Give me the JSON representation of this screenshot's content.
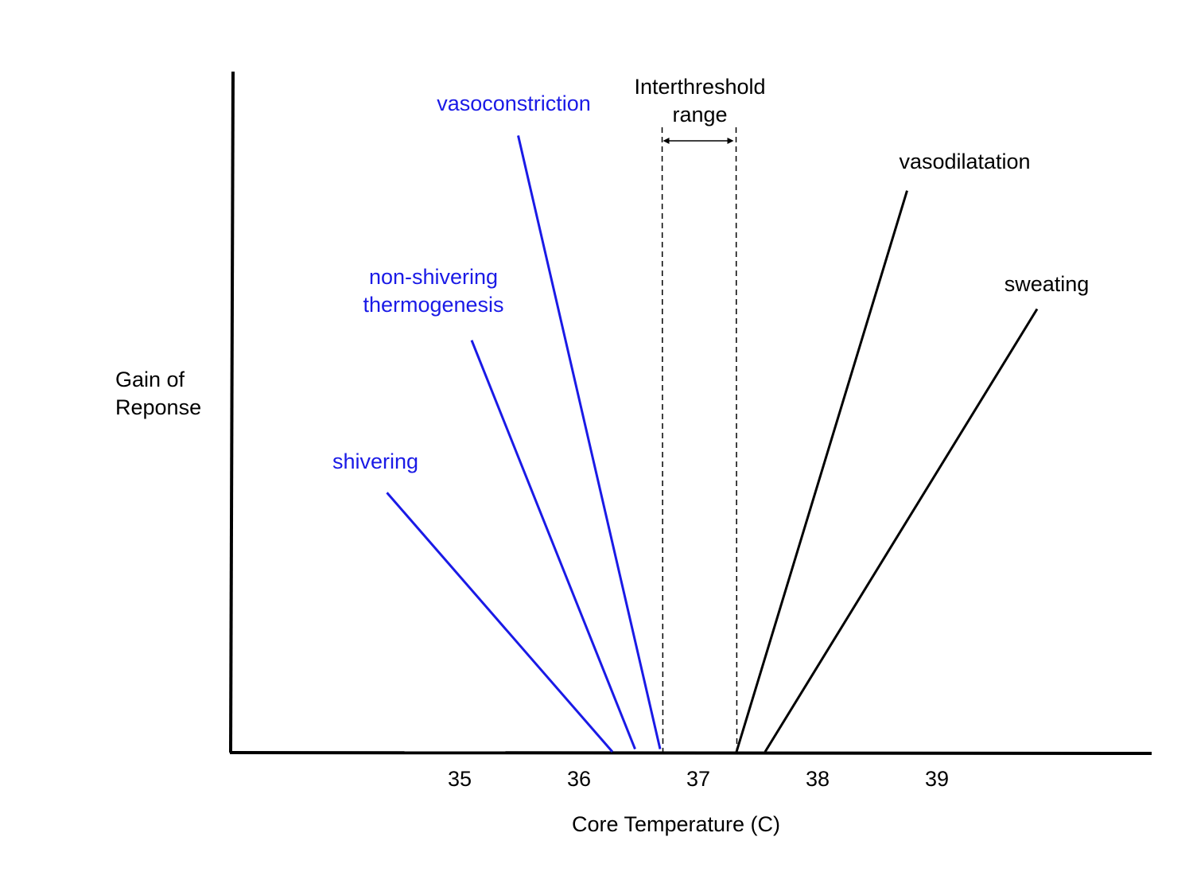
{
  "chart_data": {
    "type": "line",
    "title": "",
    "xlabel": "Core Temperature (C)",
    "ylabel": [
      "Gain of",
      "Reponse"
    ],
    "xlim": [
      33.09,
      40.79
    ],
    "ylim": [
      0,
      100
    ],
    "x_ticks": [
      "35",
      "36",
      "37",
      "38",
      "39"
    ],
    "x_tick_values": [
      35,
      36,
      37,
      38,
      39
    ],
    "grid": false,
    "colors": {
      "cold": "#1a1ae6",
      "warm": "#000000",
      "axis": "#000000"
    },
    "series": [
      {
        "name": "shivering",
        "label_lines": [
          "shivering"
        ],
        "group": "cold",
        "points": [
          [
            34.39,
            38.1
          ],
          [
            36.28,
            0
          ]
        ]
      },
      {
        "name": "non-shivering thermogenesis",
        "label_lines": [
          "non-shivering",
          "thermogenesis"
        ],
        "group": "cold",
        "points": [
          [
            35.1,
            60.5
          ],
          [
            36.47,
            0.4
          ]
        ]
      },
      {
        "name": "vasoconstriction",
        "label_lines": [
          "vasoconstriction"
        ],
        "group": "cold",
        "points": [
          [
            35.49,
            90.6
          ],
          [
            36.68,
            0.4
          ]
        ]
      },
      {
        "name": "vasodilatation",
        "label_lines": [
          "vasodilatation"
        ],
        "group": "warm",
        "points": [
          [
            38.75,
            82.5
          ],
          [
            37.32,
            0
          ]
        ]
      },
      {
        "name": "sweating",
        "label_lines": [
          "sweating"
        ],
        "group": "warm",
        "points": [
          [
            39.84,
            65.1
          ],
          [
            37.56,
            0
          ]
        ]
      }
    ],
    "annotation": {
      "label_lines": [
        "Interthreshold",
        "range"
      ],
      "range": [
        36.69,
        37.31
      ]
    }
  }
}
